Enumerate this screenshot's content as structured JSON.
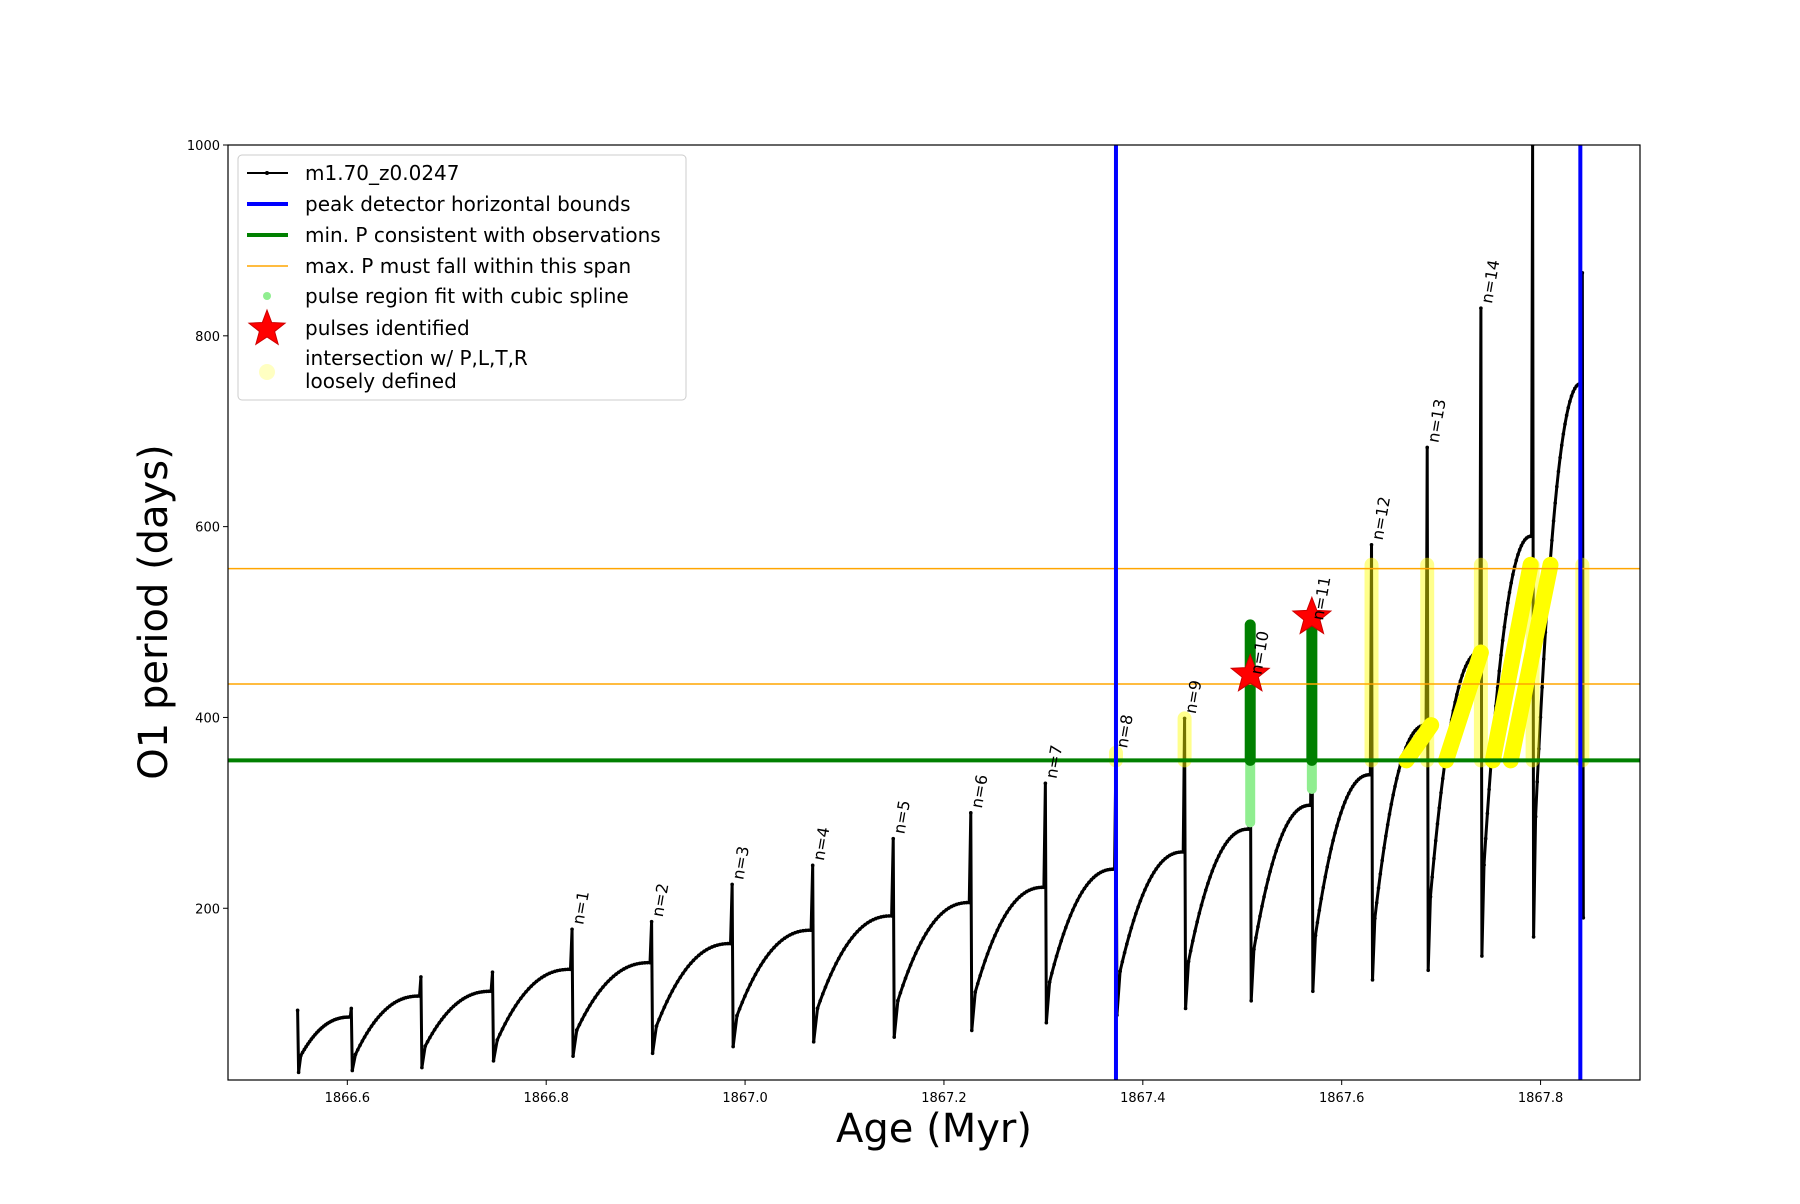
{
  "chart_data": {
    "type": "line",
    "xlabel": "Age (Myr)",
    "ylabel": "O1 period (days)",
    "xlim": [
      1866.48,
      1867.9
    ],
    "ylim": [
      20,
      1000
    ],
    "xticks": [
      1866.6,
      1866.8,
      1867.0,
      1867.2,
      1867.4,
      1867.6,
      1867.8
    ],
    "xtick_labels": [
      "1866.6",
      "1866.8",
      "1867.0",
      "1867.2",
      "1867.4",
      "1867.6",
      "1867.8"
    ],
    "yticks": [
      200,
      400,
      600,
      800,
      1000
    ],
    "ytick_labels": [
      "200",
      "400",
      "600",
      "800",
      "1000"
    ],
    "grid": false,
    "legend_position": "top-left",
    "legend": [
      {
        "label": "m1.70_z0.0247",
        "style": "line-marker",
        "color": "#000000"
      },
      {
        "label": "peak detector horizontal bounds",
        "style": "line",
        "color": "#0000ff"
      },
      {
        "label": "min. P consistent with observations",
        "style": "line",
        "color": "#008000"
      },
      {
        "label": "max. P must fall within this span",
        "style": "thin-line",
        "color": "#ffa500"
      },
      {
        "label": "pulse region fit with cubic spline",
        "style": "dot",
        "color": "#90ee90"
      },
      {
        "label": "pulses identified",
        "style": "star",
        "color": "#ff0000"
      },
      {
        "label": "intersection w/ P,L,T,R\nloosely defined",
        "style": "dot",
        "color": "#ffff99"
      }
    ],
    "vlines": [
      {
        "x": 1867.373,
        "color": "#0000ff"
      },
      {
        "x": 1867.84,
        "color": "#0000ff"
      }
    ],
    "hlines": [
      {
        "y": 355,
        "color": "#008000"
      },
      {
        "y": 435,
        "color": "#ffa500"
      },
      {
        "y": 556,
        "color": "#ffa500"
      }
    ],
    "series": [
      {
        "name": "m1.70_z0.0247",
        "color": "#000000",
        "pulses": [
          {
            "x": 1866.55,
            "peak": 93,
            "min": 28,
            "loop": 87
          },
          {
            "x": 1866.604,
            "peak": 95,
            "min": 30,
            "loop": 86
          },
          {
            "x": 1866.674,
            "peak": 128,
            "min": 33,
            "loop": 108
          },
          {
            "x": 1866.746,
            "peak": 133,
            "min": 40,
            "loop": 113
          },
          {
            "x": 1866.826,
            "peak": 178,
            "min": 45,
            "loop": 136,
            "label": "n=1"
          },
          {
            "x": 1866.906,
            "peak": 186,
            "min": 48,
            "loop": 143,
            "label": "n=2"
          },
          {
            "x": 1866.987,
            "peak": 225,
            "min": 55,
            "loop": 163,
            "label": "n=3"
          },
          {
            "x": 1867.068,
            "peak": 245,
            "min": 60,
            "loop": 177,
            "label": "n=4"
          },
          {
            "x": 1867.149,
            "peak": 273,
            "min": 65,
            "loop": 192,
            "label": "n=5"
          },
          {
            "x": 1867.227,
            "peak": 300,
            "min": 72,
            "loop": 206,
            "label": "n=6"
          },
          {
            "x": 1867.302,
            "peak": 331,
            "min": 80,
            "loop": 222,
            "label": "n=7"
          },
          {
            "x": 1867.373,
            "peak": 363,
            "min": 88,
            "loop": 241,
            "label": "n=8"
          },
          {
            "x": 1867.442,
            "peak": 399,
            "min": 95,
            "loop": 259,
            "label": "n=9"
          },
          {
            "x": 1867.508,
            "peak": 440,
            "min": 103,
            "loop": 283,
            "label": "n=10"
          },
          {
            "x": 1867.57,
            "peak": 497,
            "min": 113,
            "loop": 308,
            "label": "n=11"
          },
          {
            "x": 1867.63,
            "peak": 581,
            "min": 125,
            "loop": 340,
            "label": "n=12"
          },
          {
            "x": 1867.686,
            "peak": 683,
            "min": 135,
            "loop": 392,
            "label": "n=13"
          },
          {
            "x": 1867.74,
            "peak": 829,
            "min": 150,
            "loop": 468,
            "label": "n=14"
          },
          {
            "x": 1867.792,
            "peak": 1000,
            "min": 170,
            "loop": 590
          },
          {
            "x": 1867.842,
            "peak": 866,
            "min": 190,
            "loop": 750
          }
        ]
      }
    ],
    "spline_fits": [
      {
        "x": 1867.508,
        "y_min": 290,
        "y_max": 497
      },
      {
        "x": 1867.57,
        "y_min": 325,
        "y_max": 497
      }
    ],
    "pulses_identified": [
      {
        "x": 1867.508,
        "y": 445
      },
      {
        "x": 1867.57,
        "y": 505
      }
    ]
  }
}
